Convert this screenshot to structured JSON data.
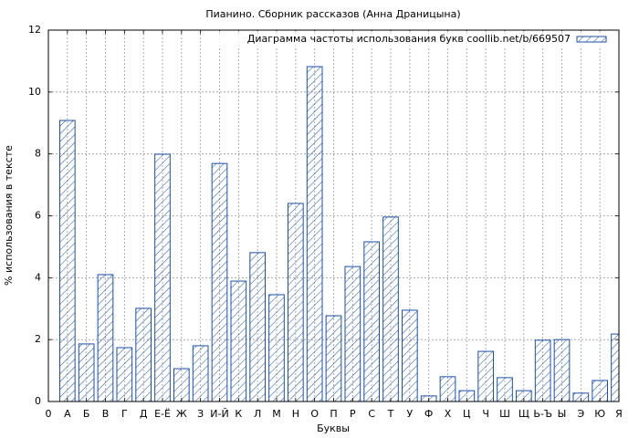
{
  "chart_data": {
    "type": "bar",
    "title": "Пианино. Сборник рассказов (Анна Драницына)",
    "xlabel": "Буквы",
    "ylabel": "% использования в тексте",
    "x": [
      1,
      2,
      3,
      4,
      5,
      6,
      7,
      8,
      9,
      10,
      11,
      12,
      13,
      14,
      15,
      16,
      17,
      18,
      19,
      20,
      21,
      22,
      23,
      24,
      25,
      26,
      27,
      28,
      29,
      30
    ],
    "series": [
      {
        "name": "Диаграмма частоты использования букв coollib.net/b/669507",
        "color": "#1c4fa5",
        "values": [
          9.08,
          1.86,
          4.1,
          1.74,
          3.01,
          7.99,
          1.06,
          1.8,
          7.69,
          3.89,
          4.81,
          3.45,
          6.4,
          10.82,
          2.77,
          4.36,
          5.16,
          5.96,
          2.95,
          0.18,
          0.8,
          0.35,
          1.62,
          0.77,
          0.35,
          1.98,
          2.0,
          0.27,
          0.68,
          2.18
        ]
      }
    ],
    "xlim": [
      0,
      30
    ],
    "xticks": [
      0,
      {
        "value": 1,
        "label": "А"
      },
      {
        "value": 2,
        "label": "Б"
      },
      {
        "value": 3,
        "label": "В"
      },
      {
        "value": 4,
        "label": "Г"
      },
      {
        "value": 5,
        "label": "Д"
      },
      {
        "value": 6,
        "label": "Е-Ё"
      },
      {
        "value": 7,
        "label": "Ж"
      },
      {
        "value": 8,
        "label": "З"
      },
      {
        "value": 9,
        "label": "И-Й"
      },
      {
        "value": 10,
        "label": "К"
      },
      {
        "value": 11,
        "label": "Л"
      },
      {
        "value": 12,
        "label": "М"
      },
      {
        "value": 13,
        "label": "Н"
      },
      {
        "value": 14,
        "label": "О"
      },
      {
        "value": 15,
        "label": "П"
      },
      {
        "value": 16,
        "label": "Р"
      },
      {
        "value": 17,
        "label": "С"
      },
      {
        "value": 18,
        "label": "Т"
      },
      {
        "value": 19,
        "label": "У"
      },
      {
        "value": 20,
        "label": "Ф"
      },
      {
        "value": 21,
        "label": "Х"
      },
      {
        "value": 22,
        "label": "Ц"
      },
      {
        "value": 23,
        "label": "Ч"
      },
      {
        "value": 24,
        "label": "Ш"
      },
      {
        "value": 25,
        "label": "Щ"
      },
      {
        "value": 26,
        "label": "Ь-Ъ"
      },
      {
        "value": 27,
        "label": "Ы"
      },
      {
        "value": 28,
        "label": "Э"
      },
      {
        "value": 29,
        "label": "Ю"
      },
      {
        "value": 30,
        "label": "Я"
      }
    ],
    "ylim": [
      0,
      12
    ],
    "yticks": [
      0,
      2,
      4,
      6,
      8,
      10,
      12
    ],
    "grid": true,
    "legend": "upper right"
  }
}
